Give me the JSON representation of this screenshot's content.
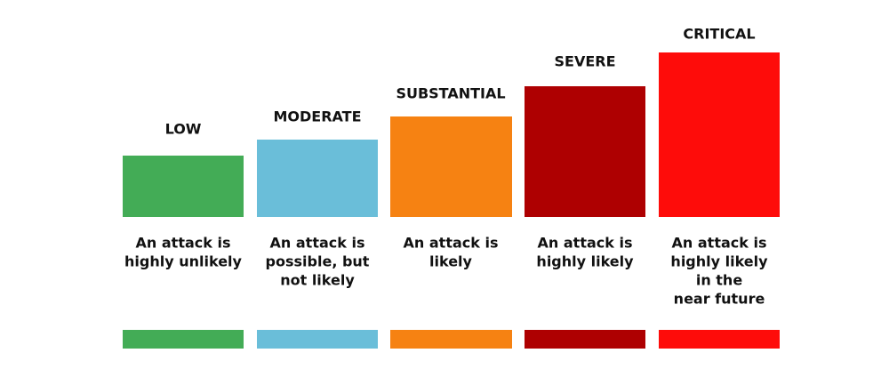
{
  "levels": [
    {
      "label": "LOW",
      "description": [
        "An attack is",
        "highly unlikely"
      ]
    },
    {
      "label": "MODERATE",
      "description": [
        "An attack is",
        "possible, but",
        "not likely"
      ]
    },
    {
      "label": "SUBSTANTIAL",
      "description": [
        "An attack is",
        "likely"
      ]
    },
    {
      "label": "SEVERE",
      "description": [
        "An attack is",
        "highly likely"
      ]
    },
    {
      "label": "CRITICAL",
      "description": [
        "An attack is",
        "highly likely",
        "in the",
        "near future"
      ]
    }
  ]
}
